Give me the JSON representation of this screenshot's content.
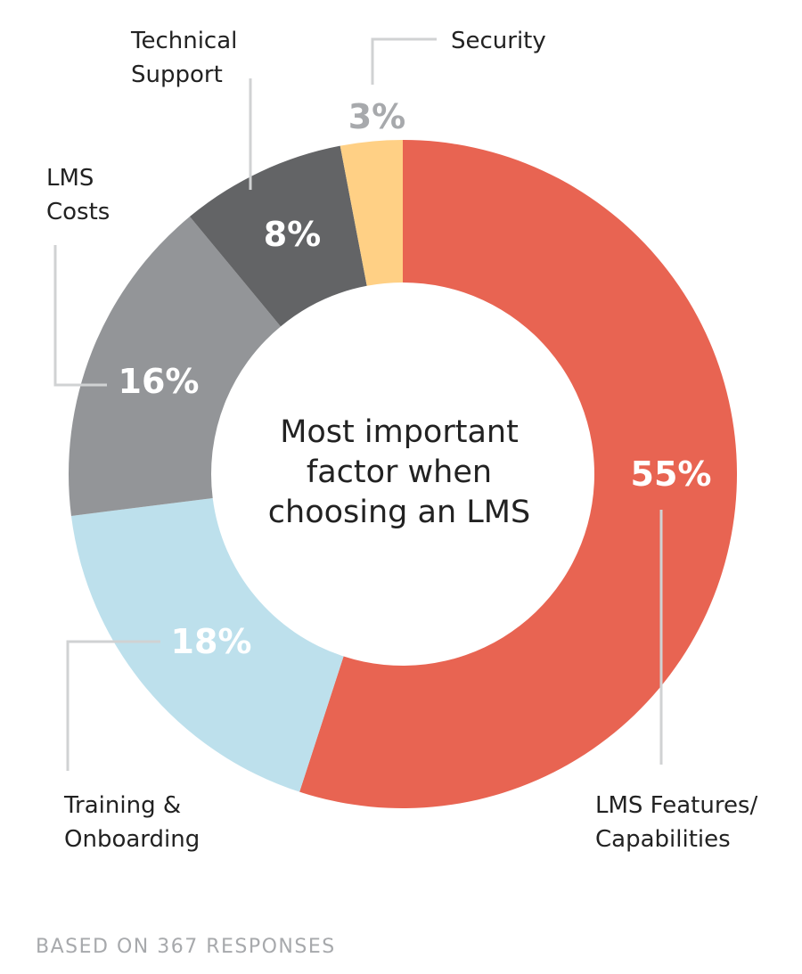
{
  "chart_data": {
    "type": "pie",
    "donut": true,
    "center_title": [
      "Most important",
      "factor when",
      "choosing an LMS"
    ],
    "slices": [
      {
        "label_lines": [
          "LMS Features/",
          "Capabilities"
        ],
        "value": 55,
        "value_label": "55%",
        "color": "#E86452"
      },
      {
        "label_lines": [
          "Training &",
          "Onboarding"
        ],
        "value": 18,
        "value_label": "18%",
        "color": "#BDE0EC"
      },
      {
        "label_lines": [
          "LMS",
          "Costs"
        ],
        "value": 16,
        "value_label": "16%",
        "color": "#939598"
      },
      {
        "label_lines": [
          "Technical",
          "Support"
        ],
        "value": 8,
        "value_label": "8%",
        "color": "#636466"
      },
      {
        "label_lines": [
          "Security"
        ],
        "value": 3,
        "value_label": "3%",
        "color": "#FFD085"
      }
    ],
    "footnote": "BASED ON 367 RESPONSES"
  }
}
